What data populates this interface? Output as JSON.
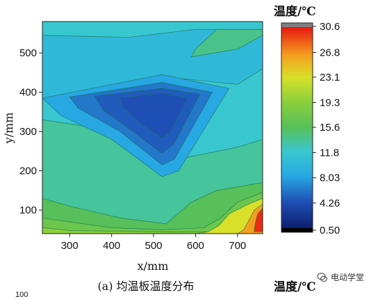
{
  "chart_data": {
    "type": "heatmap",
    "title": "(a) 均温板温度分布",
    "xlabel": "x/mm",
    "ylabel": "y/mm",
    "xlim": [
      235,
      760
    ],
    "ylim": [
      40,
      580
    ],
    "x_ticks": [
      "300",
      "400",
      "500",
      "600",
      "700"
    ],
    "x_tick_values": [
      300,
      400,
      500,
      600,
      700
    ],
    "y_ticks": [
      "100",
      "200",
      "300",
      "400",
      "500"
    ],
    "y_tick_values": [
      100,
      200,
      300,
      400,
      500
    ],
    "colorbar": {
      "title": "温度/℃",
      "labels": [
        "30.6",
        "26.8",
        "23.1",
        "19.3",
        "15.6",
        "11.8",
        "8.03",
        "4.26",
        "0.50"
      ],
      "values": [
        30.6,
        26.8,
        23.1,
        19.3,
        15.6,
        11.8,
        8.03,
        4.26,
        0.5
      ]
    },
    "regions": [
      {
        "level": 11.8,
        "points": [
          [
            235,
            40
          ],
          [
            760,
            40
          ],
          [
            760,
            580
          ],
          [
            235,
            580
          ]
        ]
      },
      {
        "level": 13.5,
        "points": [
          [
            235,
            40
          ],
          [
            760,
            40
          ],
          [
            760,
            280
          ],
          [
            700,
            260
          ],
          [
            560,
            230
          ],
          [
            520,
            250
          ],
          [
            420,
            300
          ],
          [
            235,
            330
          ]
        ]
      },
      {
        "level": 15.6,
        "points": [
          [
            235,
            40
          ],
          [
            760,
            40
          ],
          [
            760,
            170
          ],
          [
            650,
            150
          ],
          [
            590,
            120
          ],
          [
            530,
            65
          ],
          [
            420,
            80
          ],
          [
            300,
            110
          ],
          [
            235,
            130
          ]
        ]
      },
      {
        "level": 17.0,
        "points": [
          [
            235,
            40
          ],
          [
            760,
            40
          ],
          [
            760,
            145
          ],
          [
            700,
            120
          ],
          [
            660,
            80
          ],
          [
            620,
            55
          ],
          [
            520,
            50
          ],
          [
            400,
            55
          ],
          [
            300,
            70
          ],
          [
            235,
            80
          ]
        ]
      },
      {
        "level": 19.3,
        "points": [
          [
            235,
            40
          ],
          [
            760,
            40
          ],
          [
            760,
            125
          ],
          [
            700,
            100
          ],
          [
            670,
            70
          ],
          [
            650,
            45
          ],
          [
            560,
            44
          ],
          [
            420,
            46
          ],
          [
            300,
            48
          ],
          [
            235,
            55
          ]
        ]
      },
      {
        "level": 23.1,
        "points": [
          [
            600,
            40
          ],
          [
            760,
            40
          ],
          [
            760,
            130
          ],
          [
            720,
            112
          ],
          [
            680,
            90
          ],
          [
            655,
            60
          ],
          [
            630,
            45
          ]
        ]
      },
      {
        "level": 26.8,
        "points": [
          [
            700,
            40
          ],
          [
            760,
            40
          ],
          [
            760,
            115
          ],
          [
            740,
            100
          ],
          [
            725,
            70
          ],
          [
            715,
            50
          ]
        ]
      },
      {
        "level": 30.0,
        "points": [
          [
            740,
            45
          ],
          [
            760,
            45
          ],
          [
            760,
            105
          ],
          [
            748,
            90
          ],
          [
            742,
            65
          ]
        ]
      },
      {
        "level": 10.0,
        "points": [
          [
            235,
            385
          ],
          [
            330,
            385
          ],
          [
            520,
            440
          ],
          [
            700,
            420
          ],
          [
            760,
            460
          ],
          [
            760,
            560
          ],
          [
            600,
            560
          ],
          [
            440,
            540
          ],
          [
            235,
            545
          ]
        ]
      },
      {
        "level": 8.03,
        "points": [
          [
            235,
            385
          ],
          [
            520,
            445
          ],
          [
            680,
            410
          ],
          [
            560,
            200
          ],
          [
            520,
            185
          ],
          [
            400,
            280
          ],
          [
            280,
            340
          ]
        ]
      },
      {
        "level": 6.0,
        "points": [
          [
            300,
            388
          ],
          [
            520,
            425
          ],
          [
            640,
            400
          ],
          [
            550,
            230
          ],
          [
            520,
            215
          ],
          [
            420,
            300
          ],
          [
            320,
            360
          ]
        ]
      },
      {
        "level": 4.8,
        "points": [
          [
            360,
            390
          ],
          [
            520,
            410
          ],
          [
            610,
            395
          ],
          [
            550,
            270
          ],
          [
            520,
            245
          ],
          [
            450,
            300
          ],
          [
            380,
            355
          ]
        ]
      },
      {
        "level": 4.26,
        "points": [
          [
            420,
            385
          ],
          [
            520,
            398
          ],
          [
            580,
            385
          ],
          [
            540,
            300
          ],
          [
            520,
            285
          ],
          [
            470,
            320
          ],
          [
            430,
            360
          ]
        ]
      },
      {
        "level": 14.0,
        "points": [
          [
            590,
            490
          ],
          [
            700,
            510
          ],
          [
            760,
            545
          ],
          [
            760,
            560
          ],
          [
            650,
            560
          ],
          [
            600,
            510
          ]
        ]
      }
    ]
  },
  "attribution": {
    "text": "电动学堂"
  },
  "cut_text": "100"
}
